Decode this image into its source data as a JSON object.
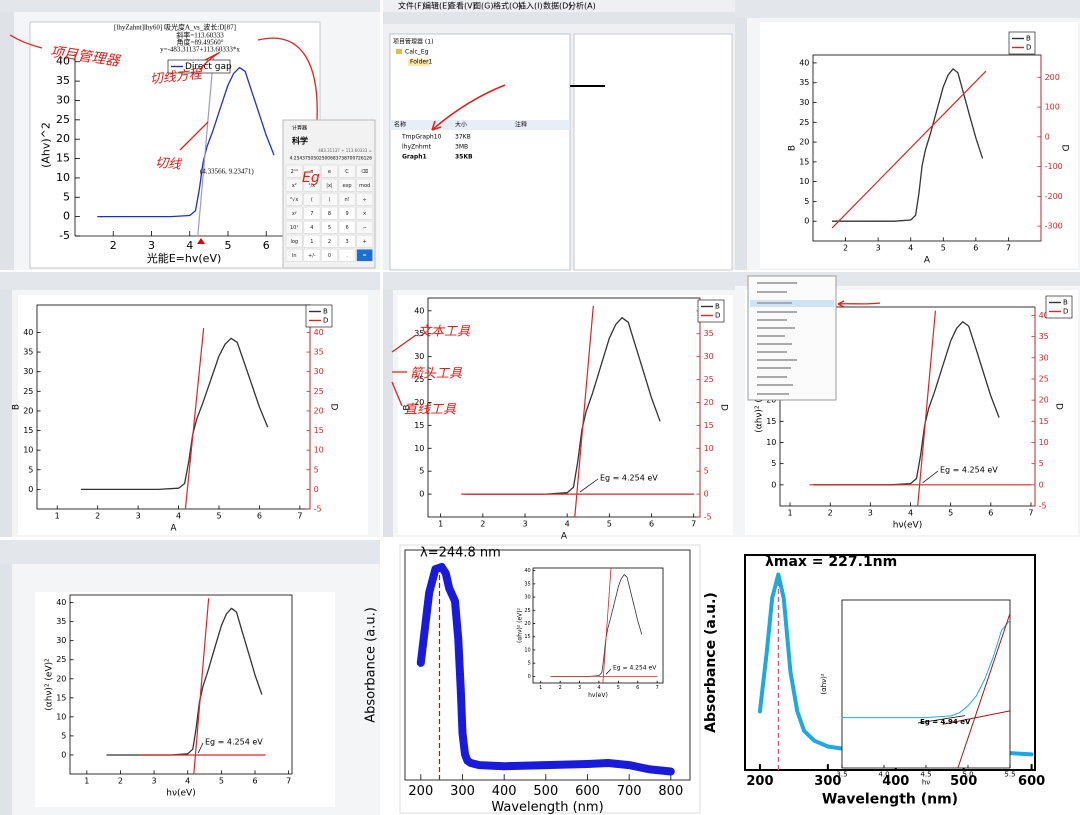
{
  "ui": {
    "p0": {
      "window_title": "[lhyZahnt]lhy60] 吸光度A_vs_波长:D[87]",
      "fit": [
        "斜率=113.60333",
        "角度=89.49560°",
        "y=-483.31137+113.60333*x"
      ],
      "point": "(4.33566, 9.23471)",
      "notes": [
        "项目管理器",
        "切线方程",
        "切线",
        "Eg"
      ]
    },
    "calc": {
      "title": "计算器",
      "mode": "科学",
      "expr": "483.31137 ÷ 113.60333 =",
      "result": "4.2543750502500683738700726126",
      "keys": [
        "2ⁿᵈ",
        "π",
        "e",
        "C",
        "⌫",
        "x²",
        "¹/x",
        "|x|",
        "exp",
        "mod",
        "²√x",
        "(",
        ")",
        "n!",
        "÷",
        "xʸ",
        "7",
        "8",
        "9",
        "×",
        "10ˣ",
        "4",
        "5",
        "6",
        "−",
        "log",
        "1",
        "2",
        "3",
        "+",
        "ln",
        "+/-",
        "0",
        ".",
        "="
      ]
    },
    "p1": {
      "menu": [
        "文件(F)",
        "编辑(E)",
        "查看(V)",
        "图(G)",
        "格式(O)",
        "插入(I)",
        "数据(D)",
        "分析(A)"
      ],
      "explorer_title": "项目管理器 (1)",
      "tree": [
        "Calc_Eg",
        "Folder1"
      ],
      "columns": [
        "名称",
        "大小",
        "注释"
      ],
      "rows": [
        [
          "TmpGraph10",
          "37KB"
        ],
        [
          "lhyZnhmt",
          "3MB"
        ],
        [
          "Graph1",
          "35KB"
        ]
      ]
    },
    "p4": {
      "notes": [
        "文本工具",
        "箭头工具",
        "直线工具"
      ]
    }
  },
  "chart_data": [
    {
      "type": "line",
      "xlabel": "光能E=hv(eV)",
      "ylabel": "(Ahv)^2",
      "legend": true,
      "xlim": [
        1,
        6.7
      ],
      "xticks": [
        2,
        3,
        4,
        5,
        6
      ],
      "ylim": [
        -5,
        42
      ],
      "yticks": [
        -5,
        0,
        5,
        10,
        15,
        20,
        25,
        30,
        35,
        40
      ],
      "series": [
        {
          "name": "Direct gap",
          "color": "#1f2fbf",
          "x": [
            1.6,
            2.5,
            3.5,
            4.0,
            4.15,
            4.25,
            4.35,
            4.45,
            4.6,
            4.8,
            5.0,
            5.15,
            5.3,
            5.45,
            5.6,
            5.8,
            6.0,
            6.2
          ],
          "values": [
            0,
            0,
            0,
            0.3,
            1.5,
            7,
            14,
            18,
            22,
            28,
            34,
            37,
            38.5,
            37.5,
            33,
            27,
            21,
            16
          ]
        },
        {
          "color": "#9a9ac8",
          "x": [
            4.21,
            4.62
          ],
          "values": [
            -5,
            41
          ]
        }
      ]
    },
    {
      "type": "line",
      "xlabel": "A",
      "ylabel": "B",
      "y2label": "D",
      "legend": true,
      "xlim": [
        1,
        8
      ],
      "xticks": [
        2,
        3,
        4,
        5,
        6,
        7
      ],
      "ylim": [
        -5,
        42
      ],
      "yticks": [
        0,
        5,
        10,
        15,
        20,
        25,
        30,
        35,
        40
      ],
      "y2lim": [
        -350,
        275
      ],
      "y2ticks": [
        -300,
        -200,
        -100,
        0,
        100,
        200
      ],
      "series": [
        {
          "name": "B",
          "color": "#333333",
          "x": [
            1.6,
            2.5,
            3.5,
            4.0,
            4.15,
            4.25,
            4.35,
            4.45,
            4.6,
            4.8,
            5.0,
            5.15,
            5.3,
            5.45,
            5.6,
            5.8,
            6.0,
            6.2
          ],
          "values": [
            0,
            0,
            0,
            0.3,
            1.5,
            7,
            14,
            18,
            22,
            28,
            34,
            37,
            38.5,
            37.5,
            33,
            27,
            21,
            16
          ]
        },
        {
          "name": "D",
          "color": "#d62728",
          "axis": "y2",
          "x": [
            1.6,
            6.3
          ],
          "values": [
            -305,
            220
          ]
        }
      ]
    },
    {
      "type": "line",
      "xlabel": "A",
      "ylabel": "B",
      "y2label": "D",
      "legend": true,
      "xlim": [
        0.5,
        7.25
      ],
      "xticks": [
        1,
        2,
        3,
        4,
        5,
        6,
        7
      ],
      "ylim": [
        -5,
        47
      ],
      "yticks": [
        0,
        5,
        10,
        15,
        20,
        25,
        30,
        35,
        40
      ],
      "y2lim": [
        -5,
        47
      ],
      "y2ticks": [
        -5,
        0,
        5,
        10,
        15,
        20,
        25,
        30,
        35,
        40
      ],
      "series": [
        {
          "name": "B",
          "color": "#333333",
          "x": [
            1.6,
            2.5,
            3.5,
            4.0,
            4.15,
            4.25,
            4.35,
            4.45,
            4.6,
            4.8,
            5.0,
            5.15,
            5.3,
            5.45,
            5.6,
            5.8,
            6.0,
            6.2
          ],
          "values": [
            0,
            0,
            0,
            0.3,
            1.5,
            7,
            14,
            18,
            22,
            28,
            34,
            37,
            38.5,
            37.5,
            33,
            27,
            21,
            16
          ]
        },
        {
          "name": "D",
          "color": "#d62728",
          "axis": "y2",
          "x": [
            4.17,
            4.62
          ],
          "values": [
            -5,
            41
          ]
        }
      ]
    },
    {
      "type": "line",
      "xlabel": "A",
      "ylabel": "B",
      "y2label": "D",
      "legend": true,
      "annotation": "Eg = 4.254 eV",
      "xlim": [
        0.7,
        7.15
      ],
      "xticks": [
        1,
        2,
        3,
        4,
        5,
        6,
        7
      ],
      "ylim": [
        -5,
        42.8
      ],
      "yticks": [
        0,
        5,
        10,
        15,
        20,
        25,
        30,
        35,
        40
      ],
      "y2lim": [
        -5,
        42.8
      ],
      "y2ticks": [
        -5,
        0,
        5,
        10,
        15,
        20,
        25,
        30,
        35,
        40
      ],
      "series": [
        {
          "name": "B",
          "color": "#333333",
          "x": [
            1.6,
            2.5,
            3.5,
            4.0,
            4.15,
            4.25,
            4.35,
            4.45,
            4.6,
            4.8,
            5.0,
            5.15,
            5.3,
            5.45,
            5.6,
            5.8,
            6.0,
            6.2
          ],
          "values": [
            0,
            0,
            0,
            0.3,
            1.5,
            7,
            14,
            18,
            22,
            28,
            34,
            37,
            38.5,
            37.5,
            33,
            27,
            21,
            16
          ]
        },
        {
          "name": "D",
          "color": "#d62728",
          "axis": "y2",
          "x": [
            4.18,
            4.62,
            null,
            1.5,
            7
          ],
          "values": [
            -5,
            41,
            null,
            0,
            0
          ]
        }
      ]
    },
    {
      "type": "line",
      "xlabel": "hν(eV)",
      "ylabel": "(αhν)² (eV)²",
      "y2label": "D",
      "legend": true,
      "annotation": "Eg = 4.254 eV",
      "xlim": [
        0.75,
        7.1
      ],
      "xticks": [
        1,
        2,
        3,
        4,
        5,
        6,
        7
      ],
      "ylim": [
        -5,
        42
      ],
      "yticks": [
        0,
        5,
        10,
        15,
        20,
        25,
        30,
        35,
        40
      ],
      "y2lim": [
        -5,
        42
      ],
      "y2ticks": [
        -5,
        0,
        5,
        10,
        15,
        20,
        25,
        30,
        35,
        40
      ],
      "series": [
        {
          "name": "B",
          "color": "#333333",
          "x": [
            1.6,
            2.5,
            3.5,
            4.0,
            4.15,
            4.25,
            4.35,
            4.45,
            4.6,
            4.8,
            5.0,
            5.15,
            5.3,
            5.45,
            5.6,
            5.8,
            6.0,
            6.2
          ],
          "values": [
            0,
            0,
            0,
            0.3,
            1.5,
            7,
            14,
            18,
            22,
            28,
            34,
            37,
            38.5,
            37.5,
            33,
            27,
            21,
            16
          ]
        },
        {
          "name": "D",
          "color": "#d62728",
          "axis": "y2",
          "x": [
            4.18,
            4.62,
            null,
            1.5,
            7
          ],
          "values": [
            -5,
            41,
            null,
            0,
            0
          ]
        }
      ]
    },
    {
      "type": "line",
      "xlabel": "hν(eV)",
      "ylabel": "(αhν)² (eV)²",
      "legend": false,
      "annotation": "Eg = 4.254 eV",
      "xlim": [
        0.5,
        7.1
      ],
      "xticks": [
        1,
        2,
        3,
        4,
        5,
        6,
        7
      ],
      "ylim": [
        -5,
        42
      ],
      "yticks": [
        0,
        5,
        10,
        15,
        20,
        25,
        30,
        35,
        40
      ],
      "series": [
        {
          "color": "#333333",
          "x": [
            1.6,
            2.5,
            3.5,
            4.0,
            4.15,
            4.25,
            4.35,
            4.45,
            4.6,
            4.8,
            5.0,
            5.15,
            5.3,
            5.45,
            5.6,
            5.8,
            6.0,
            6.2
          ],
          "values": [
            0,
            0,
            0,
            0.3,
            1.5,
            7,
            14,
            18,
            22,
            28,
            34,
            37,
            38.5,
            37.5,
            33,
            27,
            21,
            16
          ]
        },
        {
          "color": "#d62728",
          "x": [
            4.18,
            4.62,
            null,
            2.6,
            6.3
          ],
          "values": [
            -5,
            41,
            null,
            0,
            0
          ]
        }
      ]
    },
    {
      "type": "line",
      "xlabel": "Wavelength (nm)",
      "ylabel": "Absorbance (a.u.)",
      "legend": false,
      "annotation": "λ=244.8 nm",
      "marker_x": 244.8,
      "xlim": [
        162,
        846
      ],
      "xticks": [
        200,
        300,
        400,
        500,
        600,
        700,
        800
      ],
      "ylim": [
        0,
        1.08
      ],
      "series": [
        {
          "color": "#1a1adb",
          "x": [
            200,
            220,
            235,
            250,
            260,
            268,
            275,
            282,
            290,
            296,
            300,
            306,
            312,
            320,
            340,
            400,
            500,
            600,
            650,
            700,
            750,
            800
          ],
          "values": [
            0.55,
            0.88,
            0.99,
            1.0,
            0.97,
            0.9,
            0.87,
            0.84,
            0.66,
            0.42,
            0.22,
            0.12,
            0.09,
            0.08,
            0.07,
            0.065,
            0.07,
            0.075,
            0.08,
            0.07,
            0.05,
            0.04
          ]
        }
      ]
    },
    {
      "type": "line",
      "xlabel": "hν(eV)",
      "ylabel": "(αhν)² (eV)²",
      "legend": false,
      "annotation": "Eg = 4.254 eV",
      "xlim": [
        0.6,
        7.3
      ],
      "xticks": [
        1,
        2,
        3,
        4,
        5,
        6,
        7
      ],
      "ylim": [
        -2.5,
        41
      ],
      "yticks": [
        0,
        5,
        10,
        15,
        20,
        25,
        30,
        35,
        40
      ],
      "series": [
        {
          "color": "#333333",
          "x": [
            1.6,
            2.5,
            3.5,
            4.0,
            4.15,
            4.25,
            4.35,
            4.45,
            4.6,
            4.8,
            5.0,
            5.15,
            5.3,
            5.45,
            5.6,
            5.8,
            6.0,
            6.2
          ],
          "values": [
            0,
            0,
            0,
            0.3,
            1.5,
            7,
            14,
            18,
            22,
            28,
            34,
            37,
            38.5,
            37.5,
            33,
            27,
            21,
            16
          ]
        },
        {
          "color": "#d62728",
          "x": [
            4.2,
            4.62,
            null,
            1.5,
            7
          ],
          "values": [
            -2.5,
            41,
            null,
            0,
            0
          ]
        }
      ]
    },
    {
      "type": "line",
      "xlabel": "Wavelength (nm)",
      "ylabel": "Absorbance (a.u.)",
      "legend": false,
      "annotation": "λmax = 227.1nm",
      "marker_x": 227.1,
      "xlim": [
        178,
        605
      ],
      "xticks": [
        200,
        300,
        400,
        500,
        600
      ],
      "ylim": [
        0,
        1.1
      ],
      "series": [
        {
          "color": "#1ea8e0",
          "x": [
            200,
            210,
            218,
            227,
            235,
            245,
            255,
            265,
            280,
            300,
            320,
            350,
            400,
            450,
            500,
            550,
            600
          ],
          "values": [
            0.3,
            0.6,
            0.88,
            1.0,
            0.88,
            0.5,
            0.3,
            0.2,
            0.15,
            0.12,
            0.11,
            0.1,
            0.1,
            0.09,
            0.09,
            0.09,
            0.08
          ]
        }
      ]
    },
    {
      "type": "line",
      "xlabel": "hν",
      "ylabel": "(αhν)²",
      "legend": false,
      "annotation": "Eg = 4.94 eV",
      "xlim": [
        3.5,
        5.5
      ],
      "xticks": [
        3.5,
        {
          "value": 4,
          "label": "4.0"
        },
        4.5,
        {
          "value": 5,
          "label": "5.0"
        },
        5.5
      ],
      "ylim": [
        0,
        1
      ],
      "series": [
        {
          "color": "#1ea8e0",
          "x": [
            3.5,
            4.0,
            4.5,
            4.8,
            4.9,
            5.0,
            5.1,
            5.2,
            5.3,
            5.4,
            5.5
          ],
          "values": [
            0.3,
            0.3,
            0.3,
            0.31,
            0.33,
            0.37,
            0.43,
            0.53,
            0.66,
            0.82,
            0.88
          ]
        },
        {
          "color": "#a01818",
          "x": [
            4.88,
            5.5,
            null,
            4.7,
            5.5
          ],
          "values": [
            0,
            0.92,
            null,
            0.26,
            0.34
          ]
        }
      ]
    }
  ]
}
